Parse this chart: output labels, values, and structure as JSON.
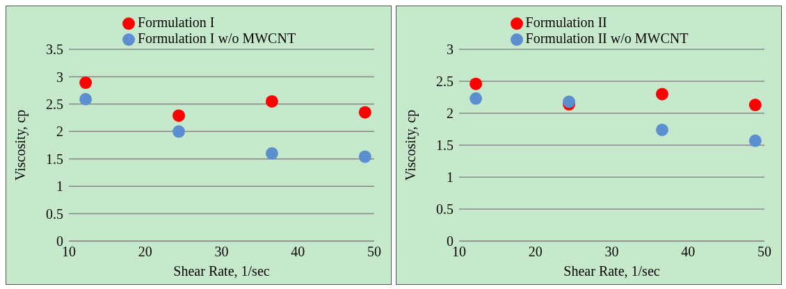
{
  "chart_data": [
    {
      "type": "scatter",
      "xlabel": "Shear Rate, 1/sec",
      "ylabel": "Viscosity, cp",
      "x": [
        12.2,
        24.4,
        36.6,
        48.8
      ],
      "series": [
        {
          "name": "Formulation I",
          "color": "#ff0000",
          "values": [
            2.89,
            2.29,
            2.55,
            2.35
          ]
        },
        {
          "name": "Formulation I w/o MWCNT",
          "color": "#5b8fd0",
          "values": [
            2.59,
            2.0,
            1.6,
            1.54
          ]
        }
      ],
      "xlim": [
        10,
        50
      ],
      "xticks": [
        10,
        20,
        30,
        40,
        50
      ],
      "ylim": [
        0,
        3.5
      ],
      "yticks": [
        0,
        0.5,
        1,
        1.5,
        2,
        2.5,
        3,
        3.5
      ],
      "grid": "y",
      "legend": "top",
      "marker": "circle"
    },
    {
      "type": "scatter",
      "xlabel": "Shear Rate, 1/sec",
      "ylabel": "Viscosity, cp",
      "x": [
        12.2,
        24.4,
        36.6,
        48.8
      ],
      "series": [
        {
          "name": "Formulation II",
          "color": "#ff0000",
          "values": [
            2.46,
            2.14,
            2.3,
            2.13
          ]
        },
        {
          "name": "Formulation II w/o MWCNT",
          "color": "#5b8fd0",
          "values": [
            2.23,
            2.18,
            1.74,
            1.57
          ]
        }
      ],
      "xlim": [
        10,
        50
      ],
      "xticks": [
        10,
        20,
        30,
        40,
        50
      ],
      "ylim": [
        0,
        3
      ],
      "yticks": [
        0,
        0.5,
        1,
        1.5,
        2,
        2.5,
        3
      ],
      "grid": "y",
      "legend": "top",
      "marker": "circle"
    }
  ]
}
